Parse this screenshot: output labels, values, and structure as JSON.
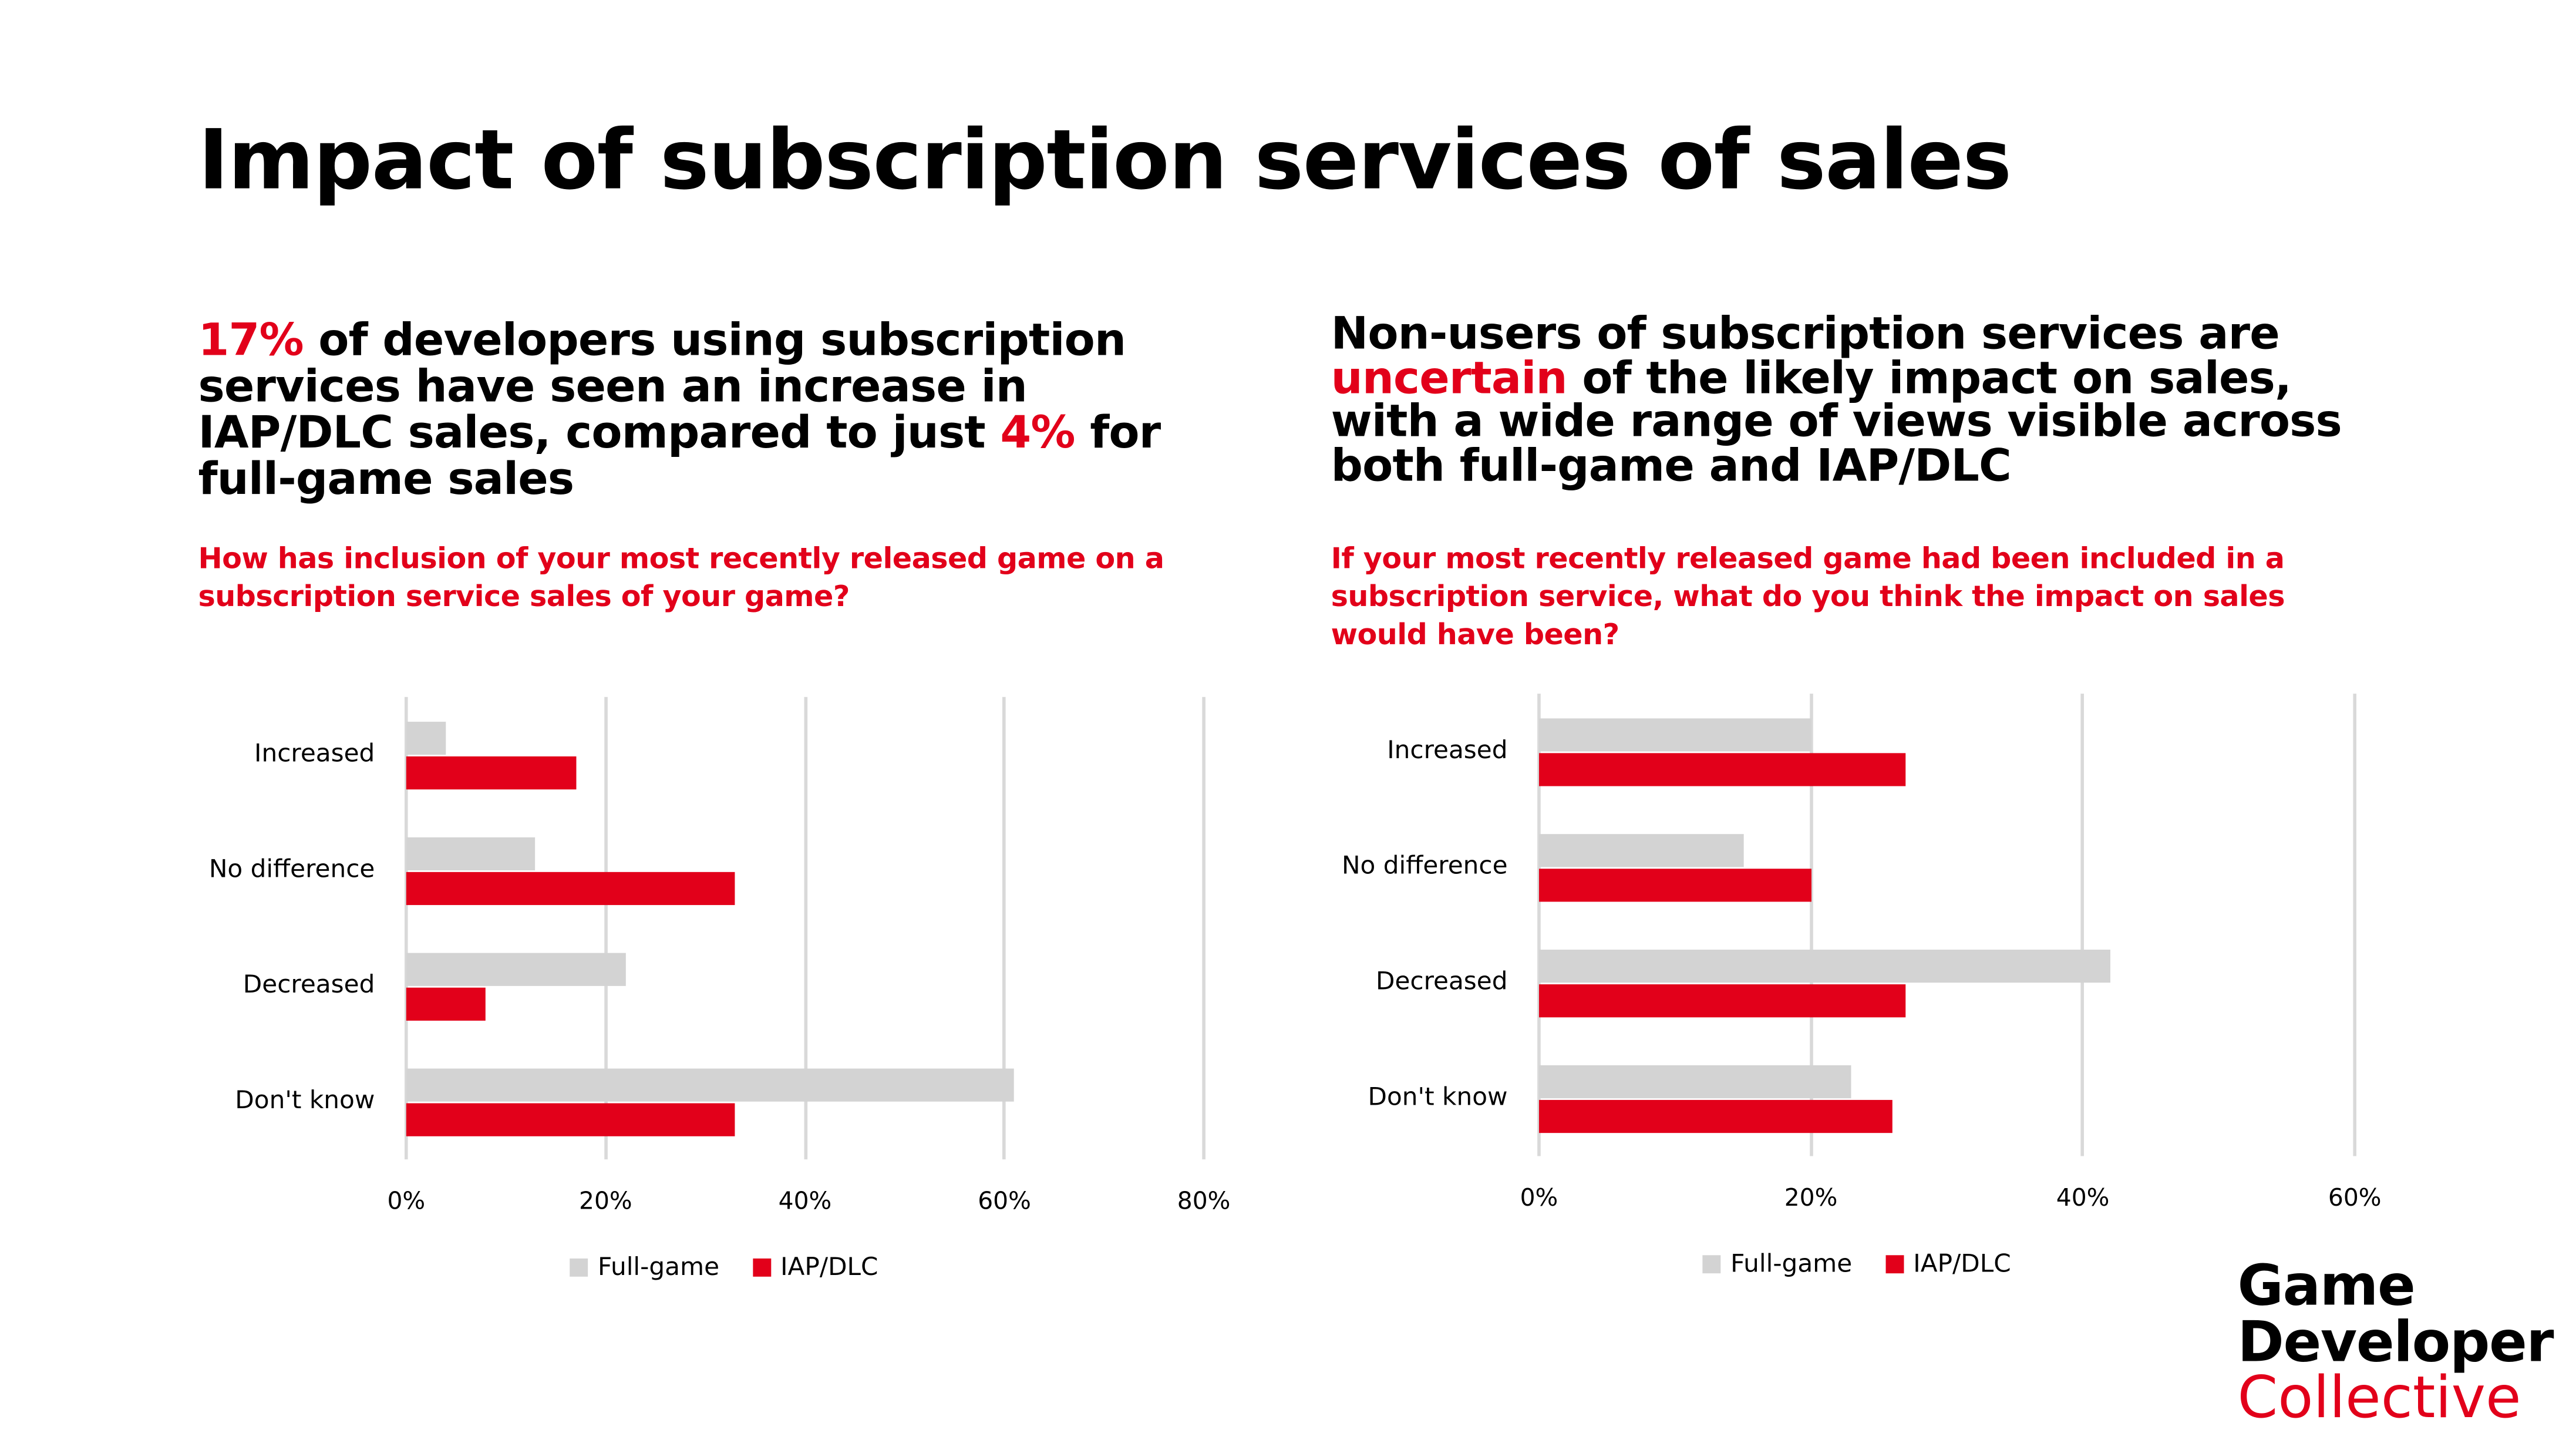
{
  "title": "Impact of subscription services of sales",
  "left": {
    "headline_parts": [
      "17%",
      " of developers using subscription services have seen an increase in IAP/DLC sales, compared to just ",
      "4%",
      " for full-game sales"
    ],
    "question": "How has inclusion of your most recently released game on a subscription service sales of your game?"
  },
  "right": {
    "headline_parts": [
      "Non-users of subscription services are ",
      "uncertain",
      " of the likely impact on sales, with a wide range of views visible across both full-game and IAP/DLC"
    ],
    "question": "If your most recently released game had been included in a subscription service, what do you think the impact on sales would have been?"
  },
  "colors": {
    "full_game": "#d3d3d3",
    "iap_dlc": "#e2001a",
    "accent": "#e2001a"
  },
  "chart_data": [
    {
      "type": "bar",
      "orientation": "horizontal",
      "categories": [
        "Increased",
        "No difference",
        "Decreased",
        "Don't know"
      ],
      "series": [
        {
          "name": "Full-game",
          "values": [
            4,
            13,
            22,
            61
          ]
        },
        {
          "name": "IAP/DLC",
          "values": [
            17,
            33,
            8,
            33
          ]
        }
      ],
      "xlim": [
        0,
        80
      ],
      "xticks": [
        "0%",
        "20%",
        "40%",
        "60%",
        "80%"
      ],
      "grid": true,
      "legend": "bottom"
    },
    {
      "type": "bar",
      "orientation": "horizontal",
      "categories": [
        "Increased",
        "No difference",
        "Decreased",
        "Don't know"
      ],
      "series": [
        {
          "name": "Full-game",
          "values": [
            20,
            15,
            42,
            23
          ]
        },
        {
          "name": "IAP/DLC",
          "values": [
            27,
            20,
            27,
            26
          ]
        }
      ],
      "xlim": [
        0,
        60
      ],
      "xticks": [
        "0%",
        "20%",
        "40%",
        "60%"
      ],
      "grid": true,
      "legend": "bottom"
    }
  ],
  "logo": {
    "line1": "Game",
    "line2": "Developer",
    "line3": "Collective"
  }
}
